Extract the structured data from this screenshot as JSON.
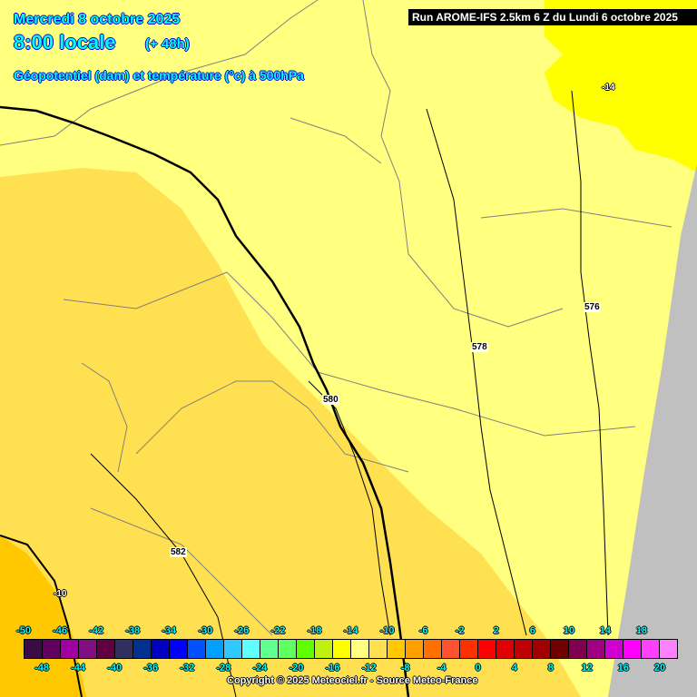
{
  "header": {
    "date": "Mercredi 8 octobre 2025",
    "time": "8:00 locale",
    "lead": "(+ 48h)",
    "parameter": "Géopotentiel (dam) et température (°c) à 500hPa",
    "run": "Run AROME-IFS 2.5km 6 Z du Lundi 6 octobre 2025"
  },
  "contour_labels": {
    "temp_ne": "-14",
    "geo_576": "576",
    "geo_578": "578",
    "geo_580": "580",
    "geo_582": "582",
    "temp_sw": "-10"
  },
  "legend": {
    "colors": [
      "#3c0a46",
      "#600060",
      "#a000a0",
      "#801080",
      "#600040",
      "#303060",
      "#003090",
      "#0000c0",
      "#0000ff",
      "#0050ff",
      "#00a0ff",
      "#30c8ff",
      "#60ffff",
      "#60ff90",
      "#60ff60",
      "#60ff00",
      "#c0f010",
      "#ffff00",
      "#ffff80",
      "#ffe050",
      "#ffc800",
      "#ffa000",
      "#ff7000",
      "#ff5030",
      "#ff3000",
      "#ff0000",
      "#e00000",
      "#c00000",
      "#a00000",
      "#700000",
      "#800050",
      "#a00080",
      "#d000d0",
      "#ff00ff",
      "#ff40ff",
      "#ff80ff"
    ],
    "top_labels": [
      "-50",
      "-46",
      "-42",
      "-38",
      "-34",
      "-30",
      "-26",
      "-22",
      "-18",
      "-14",
      "-10",
      "-6",
      "-2",
      "2",
      "6",
      "10",
      "14",
      "18"
    ],
    "bottom_labels": [
      "-48",
      "-44",
      "-40",
      "-36",
      "-32",
      "-28",
      "-24",
      "-20",
      "-16",
      "-12",
      "-8",
      "-4",
      "0",
      "4",
      "8",
      "12",
      "16",
      "20"
    ]
  },
  "copyright": "Copyright © 2025 Meteociel.fr - Source Meteo-France",
  "colors": {
    "no_data": "#c0c0c0",
    "temp_m12_m10": "#ffe050",
    "temp_m10_m8": "#ffc800",
    "temp_m14_m12": "#ffff80",
    "temp_m16_m14": "#ffff00"
  }
}
